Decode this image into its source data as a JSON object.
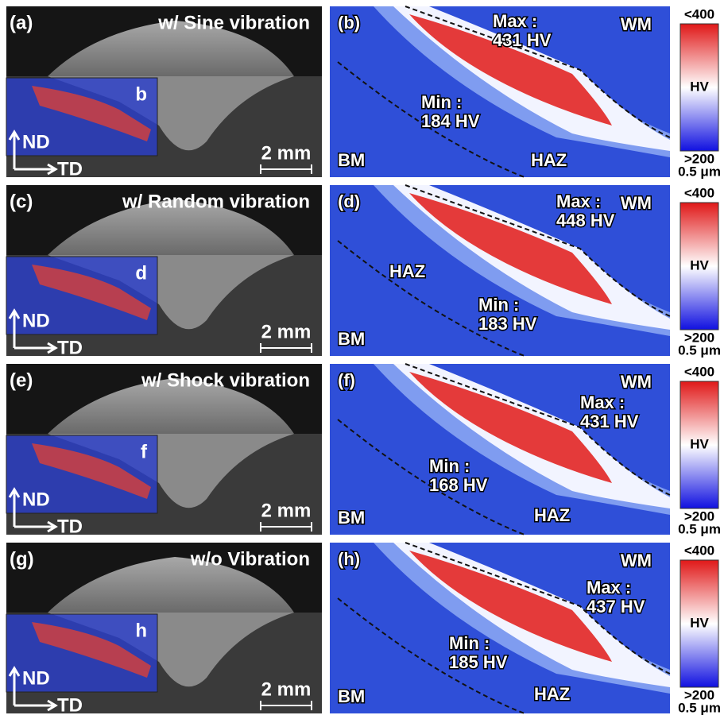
{
  "rows": [
    {
      "left": {
        "label": "(a)",
        "title": "w/ Sine vibration",
        "inset_label": "b",
        "axis_y": "ND",
        "axis_x": "TD",
        "scale": "2 mm"
      },
      "right": {
        "label": "(b)",
        "max_label": "Max :",
        "max_value": "431 HV",
        "min_label": "Min :",
        "min_value": "184 HV",
        "zones": [
          "WM",
          "HAZ",
          "BM"
        ]
      },
      "colorbar": {
        "top": "<400",
        "middle": "HV",
        "bottom": ">200",
        "scale": "0.5 μm"
      }
    },
    {
      "left": {
        "label": "(c)",
        "title": "w/ Random vibration",
        "inset_label": "d",
        "axis_y": "ND",
        "axis_x": "TD",
        "scale": "2 mm"
      },
      "right": {
        "label": "(d)",
        "max_label": "Max :",
        "max_value": "448 HV",
        "min_label": "Min :",
        "min_value": "183 HV",
        "zones": [
          "WM",
          "HAZ",
          "BM"
        ]
      },
      "colorbar": {
        "top": "<400",
        "middle": "HV",
        "bottom": ">200",
        "scale": "0.5 μm"
      }
    },
    {
      "left": {
        "label": "(e)",
        "title": "w/ Shock vibration",
        "inset_label": "f",
        "axis_y": "ND",
        "axis_x": "TD",
        "scale": "2 mm"
      },
      "right": {
        "label": "(f)",
        "max_label": "Max :",
        "max_value": "431 HV",
        "min_label": "Min :",
        "min_value": "168 HV",
        "zones": [
          "WM",
          "HAZ",
          "BM"
        ]
      },
      "colorbar": {
        "top": "<400",
        "middle": "HV",
        "bottom": ">200",
        "scale": "0.5 μm"
      }
    },
    {
      "left": {
        "label": "(g)",
        "title": "w/o Vibration",
        "inset_label": "h",
        "axis_y": "ND",
        "axis_x": "TD",
        "scale": "2 mm"
      },
      "right": {
        "label": "(h)",
        "max_label": "Max :",
        "max_value": "437 HV",
        "min_label": "Min :",
        "min_value": "185 HV",
        "zones": [
          "WM",
          "HAZ",
          "BM"
        ]
      },
      "colorbar": {
        "top": "<400",
        "middle": "HV",
        "bottom": ">200",
        "scale": "0.5 μm"
      }
    }
  ]
}
